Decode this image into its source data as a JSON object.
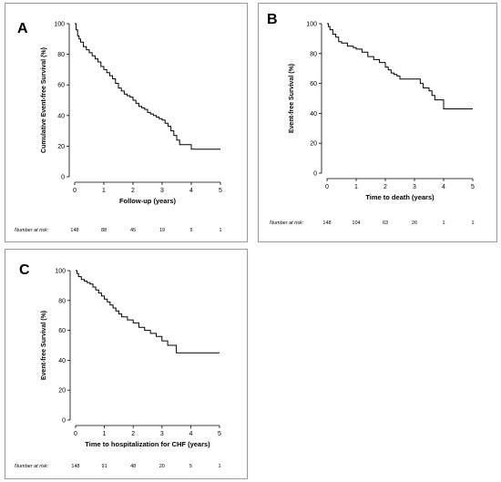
{
  "chart_data": [
    {
      "panel": "A",
      "type": "line",
      "step": true,
      "xlabel": "Follow-up (years)",
      "ylabel": "Cumulative Event-free Survival (%)",
      "xlim": [
        0,
        5
      ],
      "ylim": [
        0,
        100
      ],
      "xticks": [
        "0",
        "1",
        "2",
        "3",
        "4",
        "5"
      ],
      "yticks": [
        "0",
        "20",
        "40",
        "60",
        "80",
        "100"
      ],
      "series": [
        {
          "x": [
            0,
            0.05,
            0.1,
            0.15,
            0.2,
            0.3,
            0.4,
            0.5,
            0.6,
            0.7,
            0.8,
            0.9,
            1.0,
            1.1,
            1.2,
            1.3,
            1.4,
            1.5,
            1.6,
            1.7,
            1.8,
            1.9,
            2.0,
            2.1,
            2.2,
            2.3,
            2.4,
            2.5,
            2.6,
            2.7,
            2.8,
            2.9,
            3.0,
            3.1,
            3.2,
            3.3,
            3.4,
            3.5,
            3.6,
            3.8,
            4.0,
            5.0
          ],
          "y": [
            100,
            96,
            92,
            90,
            88,
            85,
            83,
            81,
            79,
            77,
            75,
            72,
            70,
            68,
            66,
            64,
            61,
            58,
            56,
            54,
            53,
            52,
            50,
            48,
            46,
            45,
            44,
            42,
            41,
            40,
            39,
            38,
            37,
            35,
            33,
            30,
            27,
            24,
            21,
            21,
            18,
            18
          ]
        }
      ],
      "risk_label": "Number at risk:",
      "at_risk": [
        "148",
        "88",
        "45",
        "19",
        "5",
        "1"
      ]
    },
    {
      "panel": "B",
      "type": "line",
      "step": true,
      "xlabel": "Time to death (years)",
      "ylabel": "Event-free Survival (%)",
      "xlim": [
        0,
        5
      ],
      "ylim": [
        0,
        100
      ],
      "xticks": [
        "0",
        "1",
        "2",
        "3",
        "4",
        "5"
      ],
      "yticks": [
        "0",
        "20",
        "40",
        "60",
        "80",
        "100"
      ],
      "series": [
        {
          "x": [
            0,
            0.05,
            0.1,
            0.2,
            0.3,
            0.4,
            0.5,
            0.7,
            0.9,
            1.0,
            1.2,
            1.4,
            1.6,
            1.8,
            2.0,
            2.1,
            2.2,
            2.3,
            2.4,
            2.5,
            3.2,
            3.3,
            3.5,
            3.6,
            3.7,
            4.0,
            5.0
          ],
          "y": [
            100,
            98,
            96,
            93,
            91,
            88,
            87,
            85,
            84,
            83,
            81,
            78,
            76,
            74,
            71,
            69,
            67,
            66,
            65,
            63,
            60,
            57,
            55,
            52,
            49,
            43,
            43
          ]
        }
      ],
      "risk_label": "Number at risk:",
      "at_risk": [
        "148",
        "104",
        "63",
        "26",
        "1",
        "1"
      ]
    },
    {
      "panel": "C",
      "type": "line",
      "step": true,
      "xlabel": "Time to hospitalization for CHF (years)",
      "ylabel": "Event-free Survival (%)",
      "xlim": [
        0,
        5
      ],
      "ylim": [
        0,
        100
      ],
      "xticks": [
        "0",
        "1",
        "2",
        "3",
        "4",
        "5"
      ],
      "yticks": [
        "0",
        "20",
        "40",
        "60",
        "80",
        "100"
      ],
      "series": [
        {
          "x": [
            0,
            0.05,
            0.1,
            0.2,
            0.3,
            0.4,
            0.5,
            0.6,
            0.7,
            0.8,
            0.9,
            1.0,
            1.1,
            1.2,
            1.3,
            1.4,
            1.5,
            1.6,
            1.8,
            2.0,
            2.2,
            2.4,
            2.6,
            2.8,
            3.0,
            3.2,
            3.5,
            5.0
          ],
          "y": [
            100,
            98,
            96,
            94,
            93,
            92,
            91,
            89,
            87,
            85,
            83,
            81,
            79,
            77,
            75,
            73,
            71,
            69,
            67,
            65,
            62,
            60,
            58,
            56,
            53,
            50,
            45,
            45
          ]
        }
      ],
      "risk_label": "Number at risk:",
      "at_risk": [
        "148",
        "91",
        "48",
        "20",
        "5",
        "1"
      ]
    }
  ],
  "panels": [
    {
      "letter": "A"
    },
    {
      "letter": "B"
    },
    {
      "letter": "C"
    }
  ]
}
